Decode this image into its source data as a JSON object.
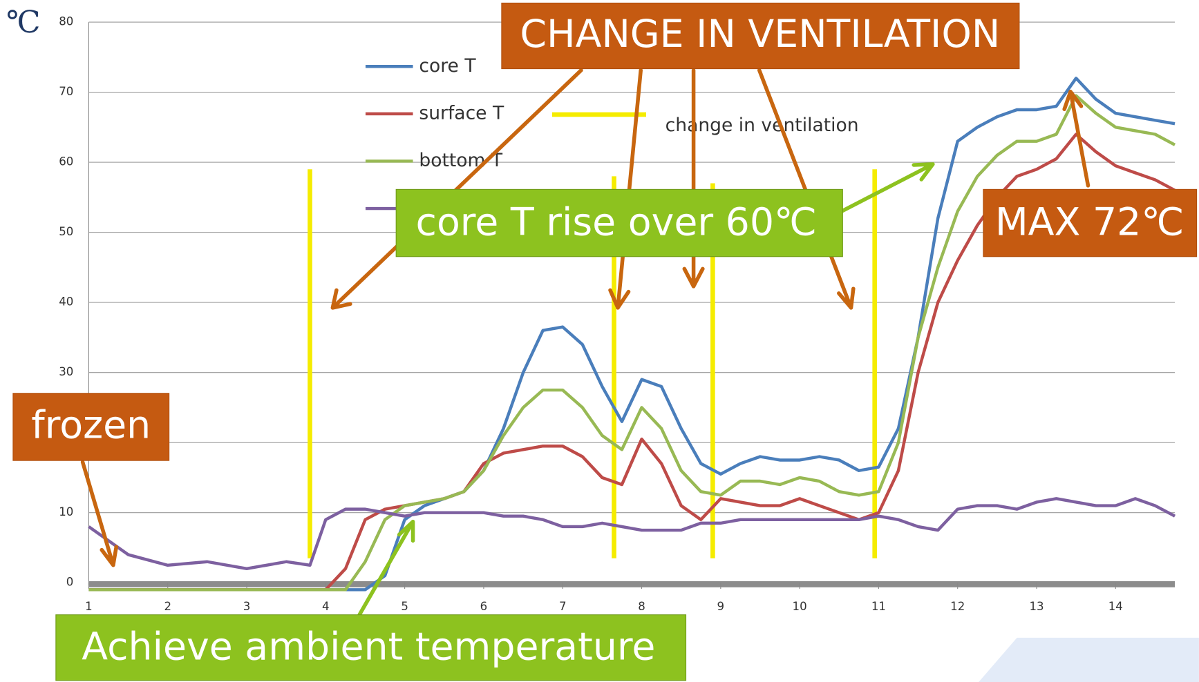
{
  "chart_data": {
    "type": "line",
    "y_unit_label": "℃",
    "x": [
      1,
      1.5,
      2,
      2.5,
      3,
      3.5,
      3.8,
      4,
      4.25,
      4.5,
      4.75,
      5,
      5.25,
      5.5,
      5.75,
      6,
      6.25,
      6.5,
      6.75,
      7,
      7.25,
      7.5,
      7.75,
      8,
      8.25,
      8.5,
      8.75,
      9,
      9.25,
      9.5,
      9.75,
      10,
      10.25,
      10.5,
      10.75,
      11,
      11.25,
      11.5,
      11.75,
      12,
      12.25,
      12.5,
      12.75,
      13,
      13.25,
      13.5,
      13.75,
      14,
      14.25,
      14.5,
      14.75
    ],
    "series": [
      {
        "name": "core T",
        "color": "#4a7ebb",
        "values": [
          -1,
          -1,
          -1,
          -1,
          -1,
          -1,
          -1,
          -1,
          -1,
          -1,
          1,
          9,
          11,
          12,
          13,
          16,
          22,
          30,
          36,
          36.5,
          34,
          28,
          23,
          29,
          28,
          22,
          17,
          15.5,
          17,
          18,
          17.5,
          17.5,
          18,
          17.5,
          16,
          16.5,
          22,
          35,
          52,
          63,
          65,
          66.5,
          67.5,
          67.5,
          68,
          72,
          69,
          67,
          66.5,
          66,
          65.5
        ]
      },
      {
        "name": "surface T",
        "color": "#be4b48",
        "values": [
          -1,
          -1,
          -1,
          -1,
          -1,
          -1,
          -1,
          -1,
          2,
          9,
          10.5,
          11,
          11.5,
          12,
          13,
          17,
          18.5,
          19,
          19.5,
          19.5,
          18,
          15,
          14,
          20.5,
          17,
          11,
          9,
          12,
          11.5,
          11,
          11,
          12,
          11,
          10,
          9,
          10,
          16,
          30,
          40,
          46,
          51,
          55,
          58,
          59,
          60.5,
          64,
          61.5,
          59.5,
          58.5,
          57.5,
          56
        ]
      },
      {
        "name": "bottom T",
        "color": "#98b954",
        "values": [
          -1,
          -1,
          -1,
          -1,
          -1,
          -1,
          -1,
          -1,
          -1,
          3,
          9,
          11,
          11.5,
          12,
          13,
          16,
          21,
          25,
          27.5,
          27.5,
          25,
          21,
          19,
          25,
          22,
          16,
          13,
          12.5,
          14.5,
          14.5,
          14,
          15,
          14.5,
          13,
          12.5,
          13,
          20,
          35,
          45,
          53,
          58,
          61,
          63,
          63,
          64,
          69.5,
          67,
          65,
          64.5,
          64,
          62.5
        ]
      },
      {
        "color": "#7d60a0",
        "values": [
          8,
          4,
          2.5,
          3,
          2,
          3,
          2.5,
          9,
          10.5,
          10.5,
          10,
          9.5,
          10,
          10,
          10,
          10,
          9.5,
          9.5,
          9,
          8,
          8,
          8.5,
          8,
          7.5,
          7.5,
          7.5,
          8.5,
          8.5,
          9,
          9,
          9,
          9,
          9,
          9,
          9,
          9.5,
          9,
          8,
          7.5,
          10.5,
          11,
          11,
          10.5,
          11.5,
          12,
          11.5,
          11,
          11,
          12,
          11,
          9.5
        ]
      }
    ],
    "ventilation": {
      "name": "change in ventilation",
      "color": "#f5ec00",
      "x": [
        3.8,
        7.65,
        8.9,
        10.95
      ]
    },
    "xlim": [
      1,
      14.75
    ],
    "ylim": [
      0,
      80
    ],
    "xticks": [
      1,
      2,
      3,
      4,
      5,
      6,
      7,
      8,
      9,
      10,
      11,
      12,
      13,
      14
    ],
    "yticks": [
      0,
      10,
      20,
      30,
      40,
      50,
      60,
      70,
      80
    ],
    "grid": true,
    "annotations": [
      "CHANGE IN VENTILATION",
      "core T rise over 60℃",
      "MAX 72℃",
      "frozen",
      "Achieve ambient temperature"
    ]
  }
}
